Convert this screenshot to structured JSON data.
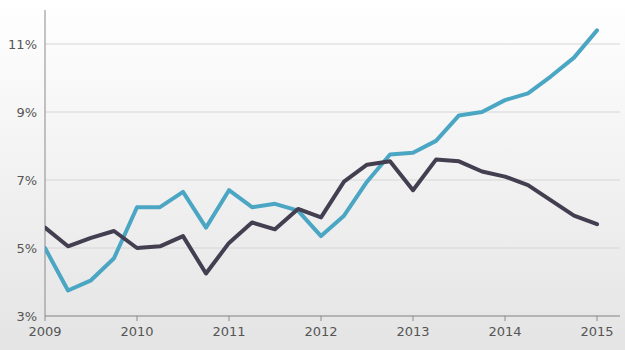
{
  "chart_data": {
    "type": "line",
    "x": [
      2009,
      2009.25,
      2009.5,
      2009.75,
      2010,
      2010.25,
      2010.5,
      2010.75,
      2011,
      2011.25,
      2011.5,
      2011.75,
      2012,
      2012.25,
      2012.5,
      2012.75,
      2013,
      2013.25,
      2013.5,
      2013.75,
      2014,
      2014.25,
      2014.5,
      2014.75,
      2015
    ],
    "series": [
      {
        "color": "#4ba6c4",
        "values": [
          5.0,
          3.75,
          4.05,
          4.7,
          6.2,
          6.2,
          6.65,
          5.6,
          6.7,
          6.2,
          6.3,
          6.1,
          5.35,
          5.95,
          6.95,
          7.75,
          7.8,
          8.15,
          8.9,
          9.0,
          9.35,
          9.55,
          10.05,
          10.6,
          11.4
        ]
      },
      {
        "color": "#433e50",
        "values": [
          5.6,
          5.05,
          5.3,
          5.5,
          5.0,
          5.05,
          5.35,
          4.25,
          5.15,
          5.75,
          5.55,
          6.15,
          5.9,
          6.95,
          7.45,
          7.55,
          6.7,
          7.6,
          7.55,
          7.25,
          7.1,
          6.85,
          6.4,
          5.95,
          5.7
        ]
      }
    ],
    "xlim": [
      2009,
      2015.25
    ],
    "xticks": [
      2009,
      2010,
      2011,
      2012,
      2013,
      2014,
      2015
    ],
    "ylim": [
      3,
      12
    ],
    "yticks": [
      {
        "value": 3,
        "label": "3%"
      },
      {
        "value": 5,
        "label": "5%"
      },
      {
        "value": 7,
        "label": "7%"
      },
      {
        "value": 9,
        "label": "9%"
      },
      {
        "value": 11,
        "label": "11%"
      }
    ],
    "grid": true
  }
}
